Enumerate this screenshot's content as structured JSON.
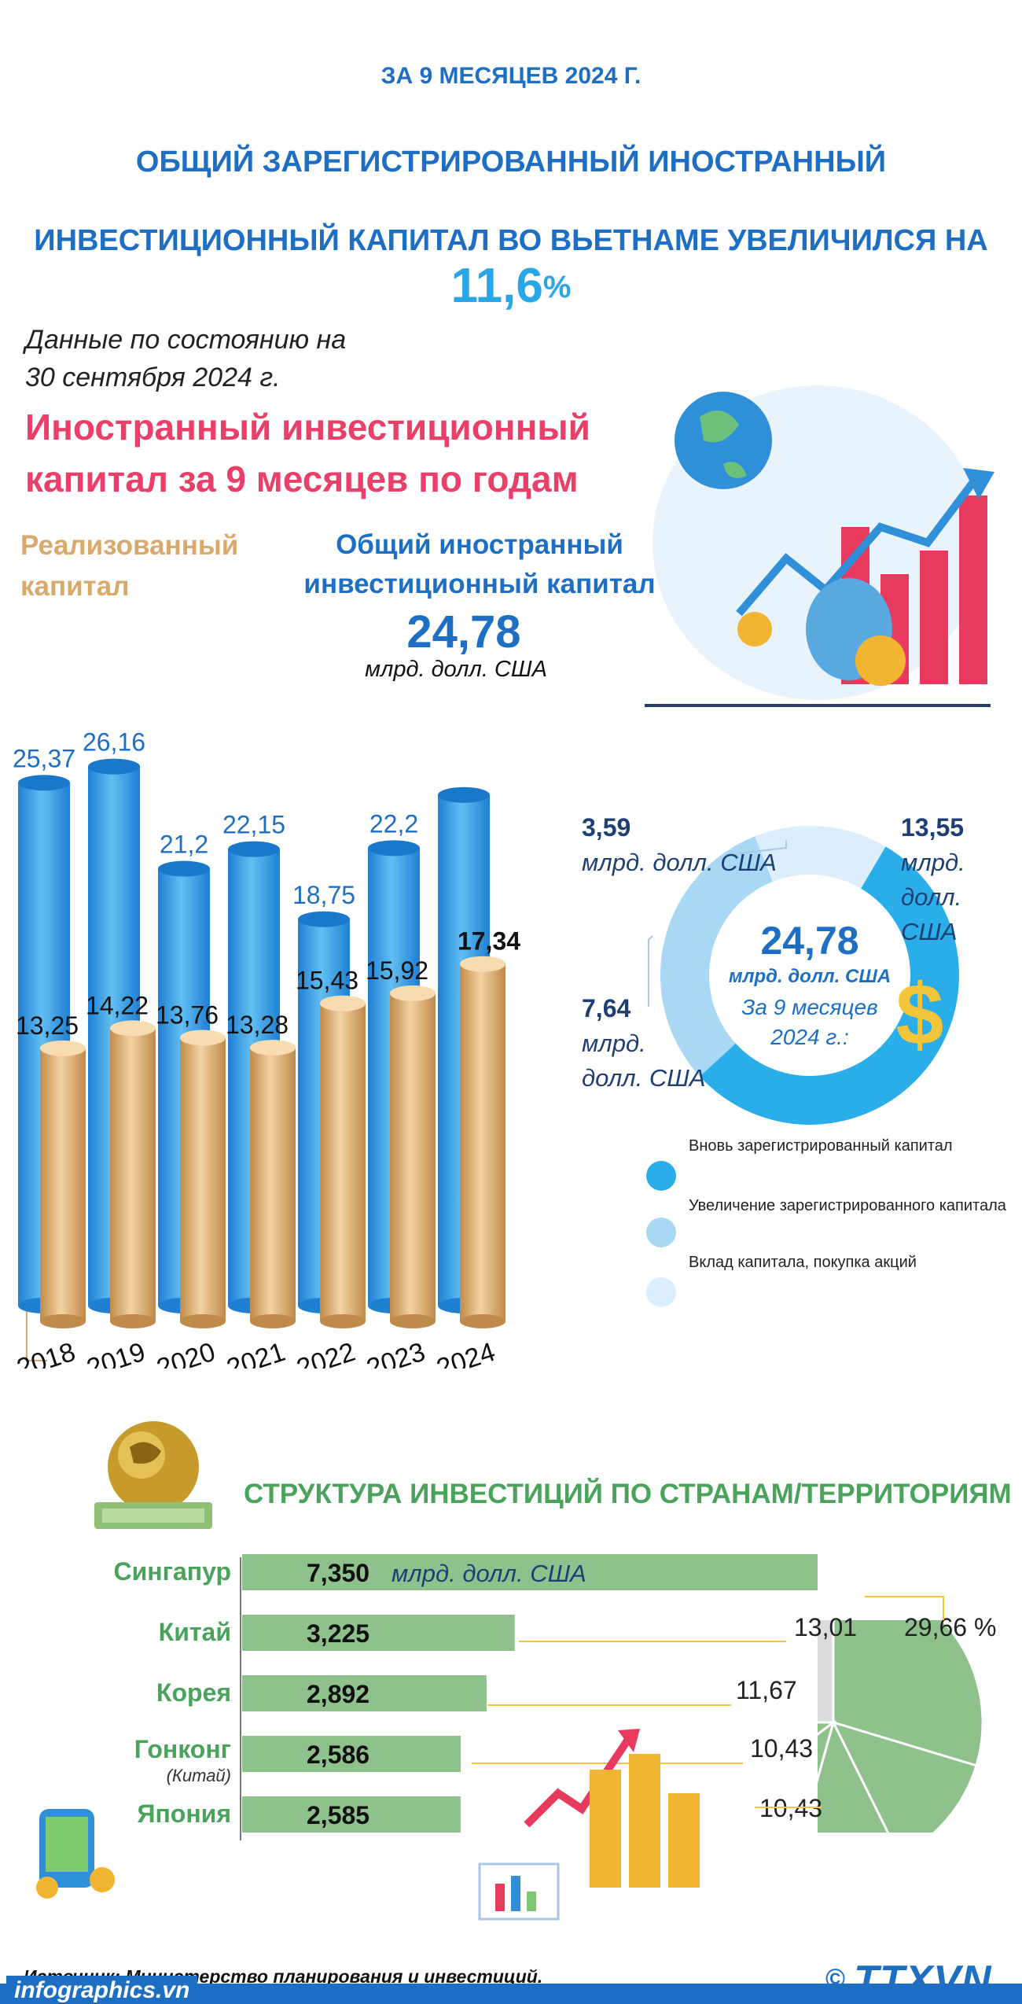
{
  "header": {
    "period": "ЗА 9 МЕСЯЦЕВ 2024 Г.",
    "title_line1": "ОБЩИЙ ЗАРЕГИСТРИРОВАННЫЙ ИНОСТРАННЫЙ",
    "title_line2": "ИНВЕСТИЦИОННЫЙ КАПИТАЛ ВО ВЬЕТНАМЕ УВЕЛИЧИЛСЯ НА",
    "increase_value": "11,6",
    "increase_unit": "%"
  },
  "as_of": {
    "line1": "Данные по состоянию на",
    "line2": "30 сентября 2024 г."
  },
  "section1": {
    "title_line1": "Иностранный инвестиционный",
    "title_line2": "капитал за 9 месяцев по годам",
    "realized_label_line1": "Реализованный",
    "realized_label_line2": "капитал",
    "total_label_line1": "Общий иностранный",
    "total_label_line2": "инвестиционный капитал",
    "total_value": "24,78",
    "total_unit": "млрд. долл. США"
  },
  "donut": {
    "center_value": "24,78",
    "center_unit": "млрд. долл. США",
    "center_period_line1": "За 9 месяцев",
    "center_period_line2": "2024 г.:",
    "label_a_value": "3,59",
    "label_a_unit": "млрд. долл. США",
    "label_b_value": "13,55",
    "label_b_unit1": "млрд.",
    "label_b_unit2": "долл.",
    "label_b_unit3": "США",
    "label_c_value": "7,64",
    "label_c_unit1": "млрд.",
    "label_c_unit2": "долл. США",
    "legend": [
      {
        "label": "Вновь зарегистрированный капитал"
      },
      {
        "label": "Увеличение зарегистрированного капитала"
      },
      {
        "label": "Вклад капитала, покупка акций"
      }
    ]
  },
  "section2": {
    "title": "СТРУКТУРА ИНВЕСТИЦИЙ ПО СТРАНАМ/ТЕРРИТОРИЯМ",
    "unit": "млрд. долл. США"
  },
  "footer": {
    "source": "Источник: Министерство планирования и инвестиций.",
    "site": "infographics.vn",
    "logo": "TTXVN",
    "copyright": "©"
  },
  "colors": {
    "blue": "#1e6fc4",
    "light_blue": "#29a6e8",
    "pink": "#ea3f68",
    "gold": "#d8a96b",
    "green": "#4aa35a",
    "bar_green": "#8fc18c"
  },
  "chart_data": [
    {
      "type": "bar",
      "categories": [
        "2018",
        "2019",
        "2020",
        "2021",
        "2022",
        "2023",
        "2024"
      ],
      "series": [
        {
          "name": "Общий иностранный инвестиционный капитал",
          "values": [
            25.37,
            26.16,
            21.2,
            22.15,
            18.75,
            22.2,
            24.78
          ],
          "labels": [
            "25,37",
            "26,16",
            "21,2",
            "22,15",
            "18,75",
            "22,2",
            ""
          ]
        },
        {
          "name": "Реализованный капитал",
          "values": [
            13.25,
            14.22,
            13.76,
            13.28,
            15.43,
            15.92,
            17.34
          ],
          "labels": [
            "13,25",
            "14,22",
            "13,76",
            "13,28",
            "15,43",
            "15,92",
            "17,34"
          ]
        }
      ]
    },
    {
      "type": "pie",
      "title": "За 9 месяцев 2024 г.:",
      "categories": [
        "Вновь зарегистрированный капитал",
        "Увеличение зарегистрированного капитала",
        "Вклад капитала, покупка акций"
      ],
      "values": [
        13.55,
        7.64,
        3.59
      ],
      "colors": [
        "#29aee9",
        "#a9d8f4",
        "#dceefb"
      ]
    },
    {
      "type": "bar",
      "orientation": "horizontal",
      "categories": [
        "Сингапур",
        "Китай",
        "Корея",
        "Гонконг",
        "Япония"
      ],
      "category_notes": [
        "",
        "",
        "",
        "(Китай)",
        ""
      ],
      "values": [
        7.35,
        3.225,
        2.892,
        2.586,
        2.585
      ],
      "labels": [
        "7,350",
        "3,225",
        "2,892",
        "2,586",
        "2,585"
      ]
    },
    {
      "type": "pie",
      "values": [
        29.66,
        13.01,
        11.67,
        10.43,
        10.43
      ],
      "labels": [
        "29,66 %",
        "13,01",
        "11,67",
        "10,43",
        "10,43"
      ],
      "remainder_label": ""
    }
  ]
}
